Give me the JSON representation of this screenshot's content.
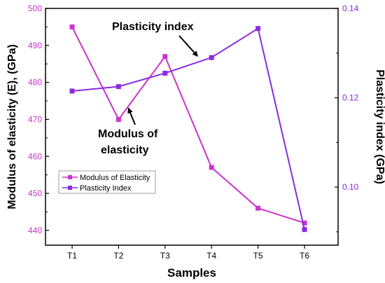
{
  "chart_data": {
    "type": "line",
    "categories": [
      "T1",
      "T2",
      "T3",
      "T4",
      "T5",
      "T6"
    ],
    "xlabel": "Samples",
    "ylabel_left": "Modulus of elasticity (E), (GPa)",
    "ylabel_right": "Plasticity index (GPa)",
    "ylim_left": [
      436,
      500
    ],
    "ylim_right": [
      0.087,
      0.14
    ],
    "left_ticks": [
      "440",
      "450",
      "460",
      "470",
      "480",
      "490",
      "500"
    ],
    "right_ticks": [
      "0.10",
      "0.12",
      "0.14"
    ],
    "series": [
      {
        "name": "Modulus of Elasticity",
        "axis": "left",
        "color": "#cc33cc",
        "values": [
          495,
          470,
          487,
          457,
          446,
          442
        ]
      },
      {
        "name": "Plasticity Index",
        "axis": "right",
        "color": "#8a2be2",
        "values": [
          0.1215,
          0.1225,
          0.1255,
          0.129,
          0.1355,
          0.0905
        ]
      }
    ],
    "annotations": [
      {
        "text": "Plasticity index",
        "target_category": "T4",
        "target_series": 1
      },
      {
        "text_lines": [
          "Modulus of",
          "elasticity"
        ],
        "target_category": "T2",
        "target_series": 0
      }
    ],
    "legend_placement": "lower-left"
  }
}
